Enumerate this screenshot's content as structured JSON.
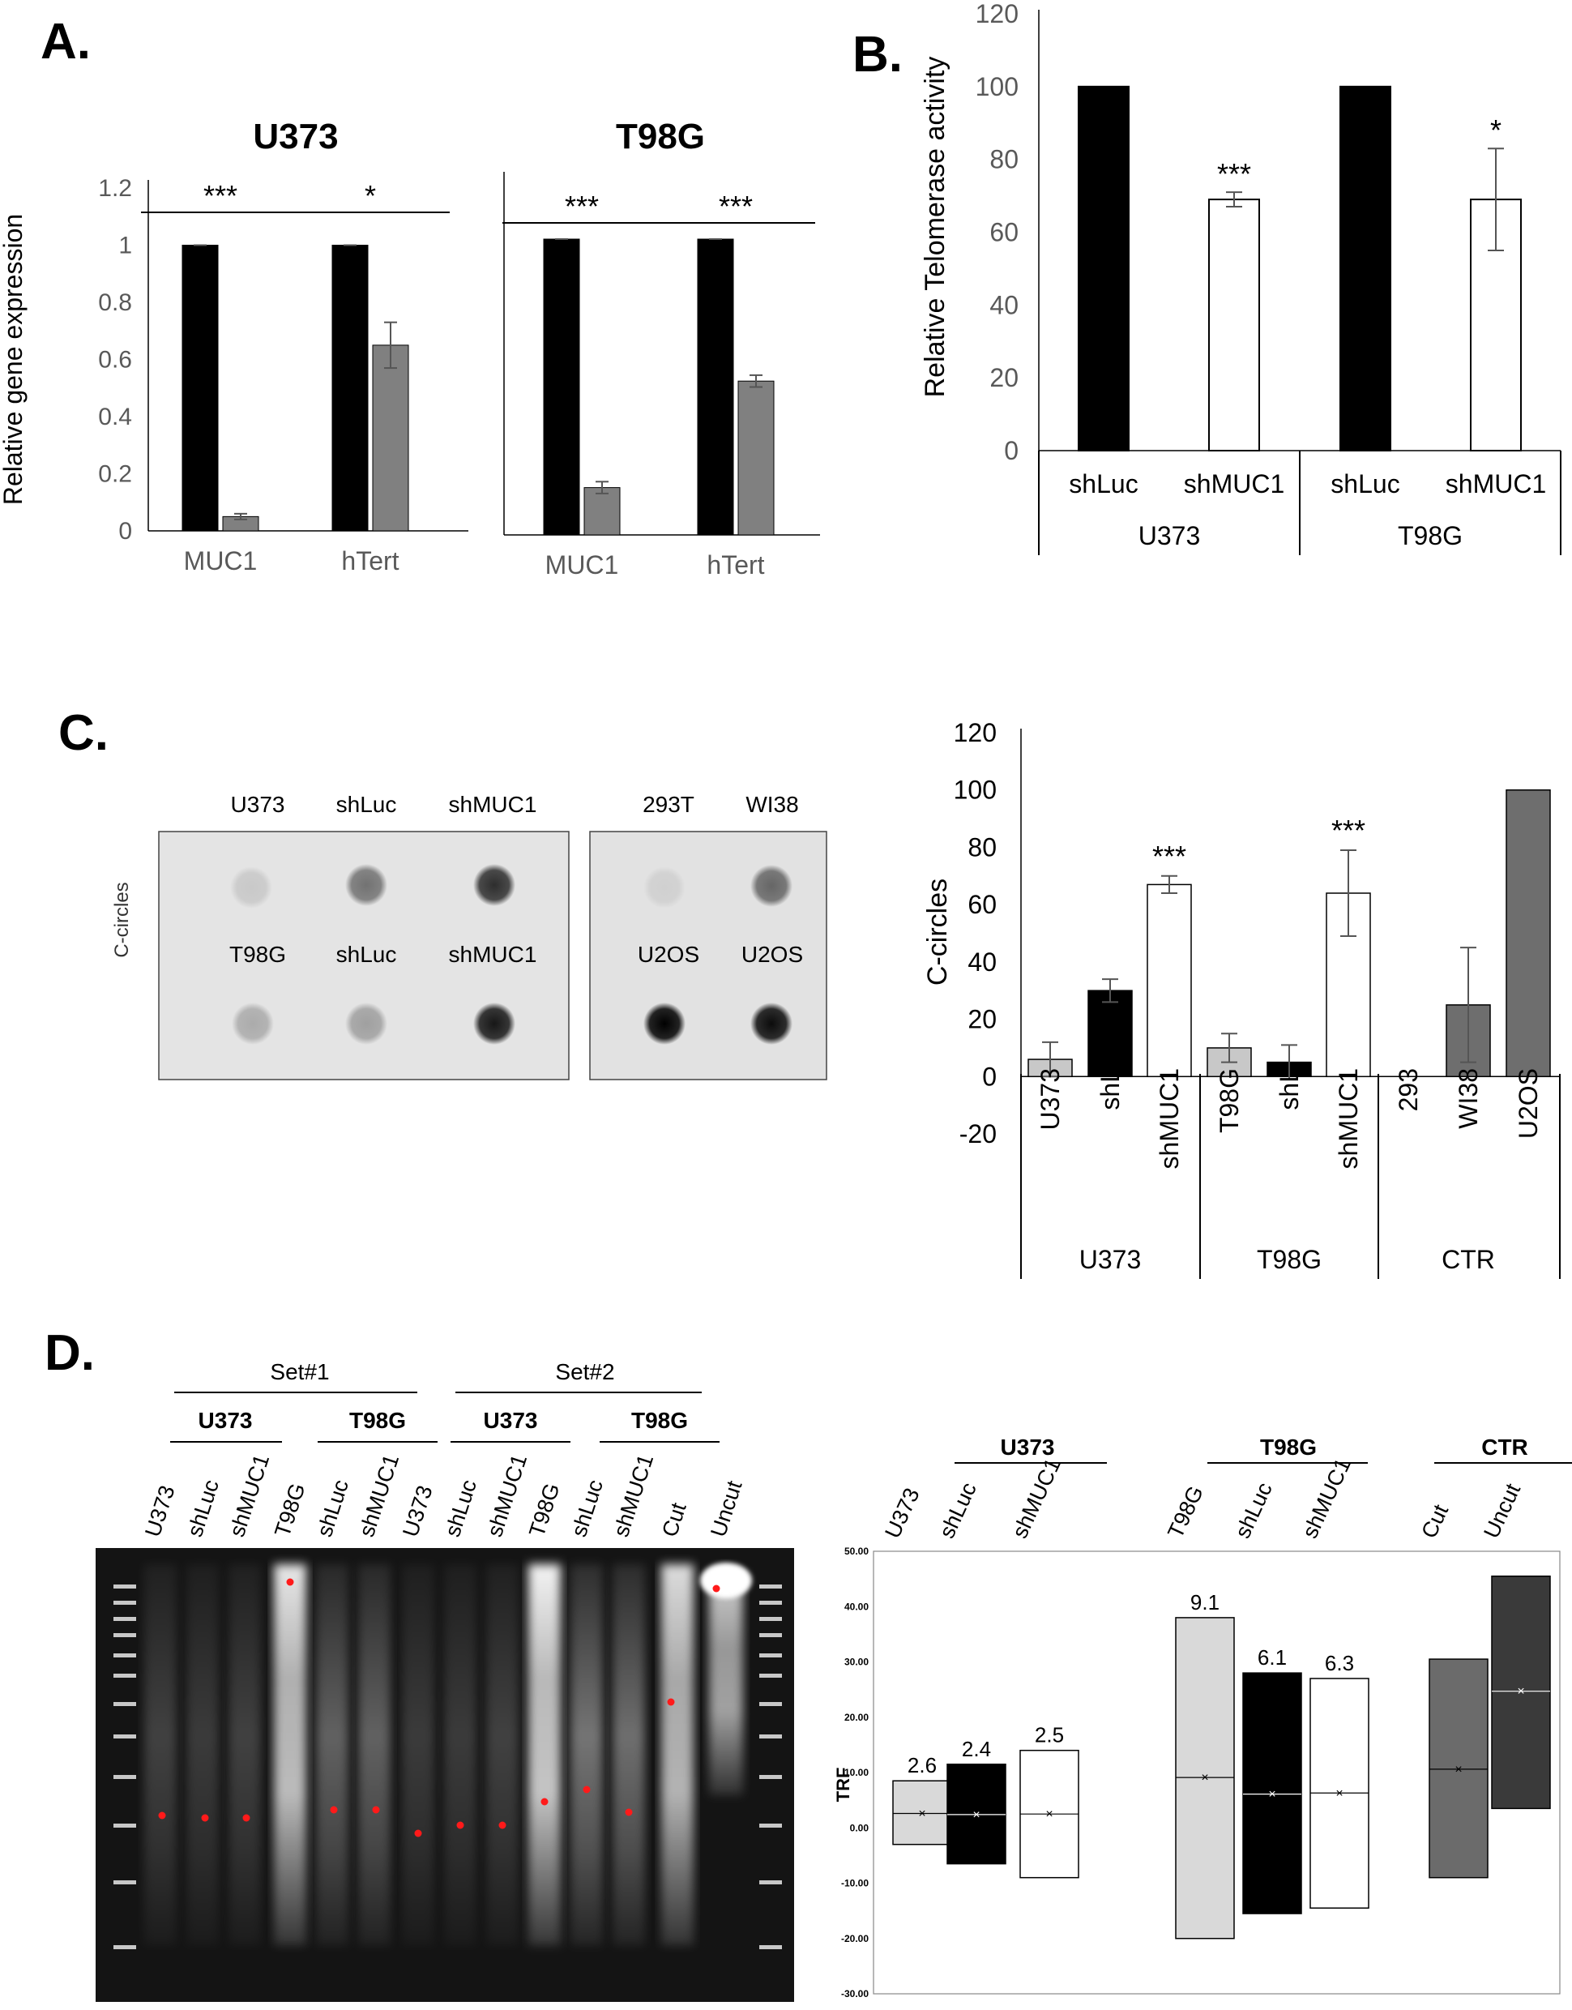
{
  "panels": {
    "a": "A.",
    "b": "B.",
    "c": "C.",
    "d": "D."
  },
  "colors": {
    "black": "#000000",
    "gray": "#808080",
    "light_gray": "#c8c8c8",
    "white": "#ffffff",
    "axis_gray": "#a6a6a6",
    "tick_text": "#595959",
    "dark_gray": "#6e6e6e",
    "trf_cut": "#6b6b6b",
    "trf_uncut": "#3a3a3a",
    "trf_light": "#d9d9d9",
    "red_dot": "#ff1a1a"
  },
  "chart_data": [
    {
      "id": "A-U373",
      "type": "bar",
      "title": "U373",
      "ylabel": "Relative gene expression",
      "ylim": [
        0,
        1.2
      ],
      "yticks": [
        "0",
        "0.2",
        "0.4",
        "0.6",
        "0.8",
        "1",
        "1.2"
      ],
      "categories": [
        "MUC1",
        "hTert"
      ],
      "series": [
        {
          "values": [
            1,
            1
          ],
          "errors": [
            0,
            0
          ],
          "color": "#000000"
        },
        {
          "values": [
            0.05,
            0.65
          ],
          "errors": [
            0.01,
            0.08
          ],
          "color": "#808080"
        }
      ],
      "significance": [
        "***",
        "*"
      ]
    },
    {
      "id": "A-T98G",
      "type": "bar",
      "title": "T98G",
      "ylim": [
        0,
        1.2
      ],
      "categories": [
        "MUC1",
        "hTert"
      ],
      "series": [
        {
          "values": [
            1,
            1
          ],
          "errors": [
            0,
            0
          ],
          "color": "#000000"
        },
        {
          "values": [
            0.16,
            0.52
          ],
          "errors": [
            0.02,
            0.02
          ],
          "color": "#808080"
        }
      ],
      "significance": [
        "***",
        "***"
      ]
    },
    {
      "id": "B",
      "type": "bar",
      "ylabel": "Relative Telomerase activity",
      "ylim": [
        0,
        120
      ],
      "yticks": [
        "0",
        "20",
        "40",
        "60",
        "80",
        "100",
        "120"
      ],
      "categories": [
        "shLuc",
        "shMUC1",
        "shLuc",
        "shMUC1"
      ],
      "groups": [
        "U373",
        "T98G"
      ],
      "values": [
        100,
        69,
        100,
        69
      ],
      "errors": [
        0,
        2,
        0,
        14
      ],
      "colors": [
        "#000000",
        "#ffffff",
        "#000000",
        "#ffffff"
      ],
      "significance": [
        "",
        "***",
        "",
        "*"
      ]
    },
    {
      "id": "C-bar",
      "type": "bar",
      "ylabel": "C-circles",
      "ylim": [
        -20,
        120
      ],
      "yticks": [
        "-20",
        "0",
        "20",
        "40",
        "60",
        "80",
        "100",
        "120"
      ],
      "categories": [
        "U373",
        "shL",
        "shMUC1",
        "T98G",
        "shL",
        "shMUC1",
        "293",
        "WI38",
        "U2OS"
      ],
      "groups": [
        "U373",
        "T98G",
        "CTR"
      ],
      "values": [
        6,
        30,
        67,
        10,
        5,
        64,
        0,
        25,
        100
      ],
      "errors": [
        6,
        4,
        3,
        5,
        6,
        15,
        0,
        20,
        0
      ],
      "colors": [
        "#c8c8c8",
        "#000000",
        "#ffffff",
        "#c8c8c8",
        "#000000",
        "#ffffff",
        "#808080",
        "#6e6e6e",
        "#6e6e6e"
      ],
      "significance": [
        "",
        "",
        "***",
        "",
        "",
        "***",
        "",
        "",
        ""
      ]
    },
    {
      "id": "D-box",
      "type": "box",
      "ylabel": "TRF",
      "ylim": [
        -30,
        50
      ],
      "yticks": [
        "-30.00",
        "-20.00",
        "-10.00",
        "0.00",
        "10.00",
        "20.00",
        "30.00",
        "40.00",
        "50.00"
      ],
      "categories": [
        "U373",
        "shLuc",
        "shMUC1",
        "T98G",
        "shLuc",
        "shMUC1",
        "Cut",
        "Uncut"
      ],
      "groups": [
        "U373",
        "T98G",
        "CTR"
      ],
      "boxes": [
        {
          "low": -3,
          "high": 8.5,
          "median": 2.6,
          "mean": 2.6,
          "label": "2.6",
          "color": "#d9d9d9"
        },
        {
          "low": -6.5,
          "high": 11.5,
          "median": 2.4,
          "mean": 2.4,
          "label": "2.4",
          "color": "#000000"
        },
        {
          "low": -9,
          "high": 14,
          "median": 2.5,
          "mean": 2.5,
          "label": "2.5",
          "color": "#ffffff"
        },
        {
          "low": -20,
          "high": 38,
          "median": 9.1,
          "mean": 9.1,
          "label": "9.1",
          "color": "#d9d9d9"
        },
        {
          "low": -15.5,
          "high": 28,
          "median": 6.1,
          "mean": 6.1,
          "label": "6.1",
          "color": "#000000"
        },
        {
          "low": -14.5,
          "high": 27,
          "median": 6.3,
          "mean": 6.3,
          "label": "6.3",
          "color": "#ffffff"
        },
        {
          "low": -9,
          "high": 30.5,
          "median": 10.6,
          "mean": 10.6,
          "label": "",
          "color": "#6b6b6b"
        },
        {
          "low": 3.5,
          "high": 45.5,
          "median": 24.7,
          "mean": 24.7,
          "label": "",
          "color": "#3a3a3a"
        }
      ]
    }
  ],
  "blot": {
    "row_label": "C-circles",
    "left_top": [
      "U373",
      "shLuc",
      "shMUC1"
    ],
    "left_bottom": [
      "T98G",
      "shLuc",
      "shMUC1"
    ],
    "right_top": [
      "293T",
      "WI38"
    ],
    "right_bottom": [
      "U2OS",
      "U2OS"
    ]
  },
  "gel": {
    "sets": [
      "Set#1",
      "Set#2"
    ],
    "subgroups": [
      "U373",
      "T98G",
      "U373",
      "T98G"
    ],
    "lanes": [
      "U373",
      "shLuc",
      "shMUC1",
      "T98G",
      "shLuc",
      "shMUC1",
      "U373",
      "shLuc",
      "shMUC1",
      "T98G",
      "shLuc",
      "shMUC1",
      "Cut",
      "Uncut"
    ]
  }
}
